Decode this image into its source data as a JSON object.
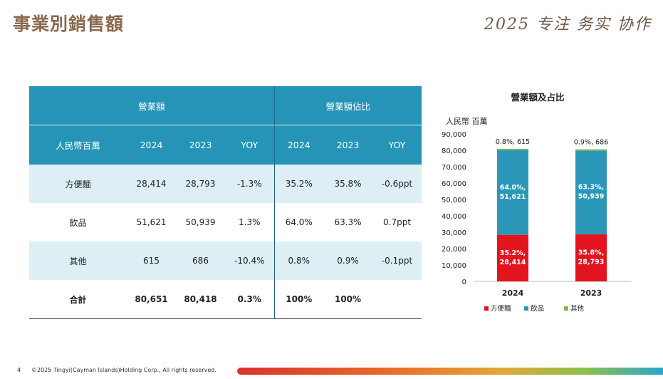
{
  "page": {
    "title": "事業別銷售額",
    "slogan": "2025 专注 务实 协作",
    "footer": {
      "page_number": "4",
      "copyright": "©2025 Tingyi(Cayman Islands)Holding Corp., All rights reserved."
    }
  },
  "table": {
    "group_headers": [
      "營業額",
      "營業額佔比"
    ],
    "columns": [
      "人民幣百萬",
      "2024",
      "2023",
      "YOY",
      "2024",
      "2023",
      "YOY"
    ],
    "rows": [
      {
        "label": "方便麵",
        "cells": [
          "28,414",
          "28,793",
          "-1.3%",
          "35.2%",
          "35.8%",
          "-0.6ppt"
        ]
      },
      {
        "label": "飲品",
        "cells": [
          "51,621",
          "50,939",
          "1.3%",
          "64.0%",
          "63.3%",
          "0.7ppt"
        ]
      },
      {
        "label": "其他",
        "cells": [
          "615",
          "686",
          "-10.4%",
          "0.8%",
          "0.9%",
          "-0.1ppt"
        ]
      },
      {
        "label": "合計",
        "cells": [
          "80,651",
          "80,418",
          "0.3%",
          "100%",
          "100%",
          ""
        ]
      }
    ]
  },
  "chart_data": {
    "type": "bar",
    "stacked": true,
    "title": "營業額及占比",
    "ylabel": "人民幣 百萬",
    "categories": [
      "2024",
      "2023"
    ],
    "ylim": [
      0,
      90000
    ],
    "yticks": [
      "0",
      "10,000",
      "20,000",
      "30,000",
      "40,000",
      "50,000",
      "60,000",
      "70,000",
      "80,000",
      "90,000"
    ],
    "legend_position": "bottom",
    "series": [
      {
        "name": "方便麵",
        "color": "#e3141e",
        "values": [
          28414,
          28793
        ],
        "labels": [
          "35.2%,\n28,414",
          "35.8%,\n28,793"
        ]
      },
      {
        "name": "飲品",
        "color": "#2b97b8",
        "values": [
          51621,
          50939
        ],
        "labels": [
          "64.0%,\n51,621",
          "63.3%,\n50,939"
        ]
      },
      {
        "name": "其他",
        "color": "#7ab648",
        "values": [
          615,
          686
        ],
        "labels": [
          "0.8%, 615",
          "0.9%, 686"
        ]
      }
    ]
  }
}
